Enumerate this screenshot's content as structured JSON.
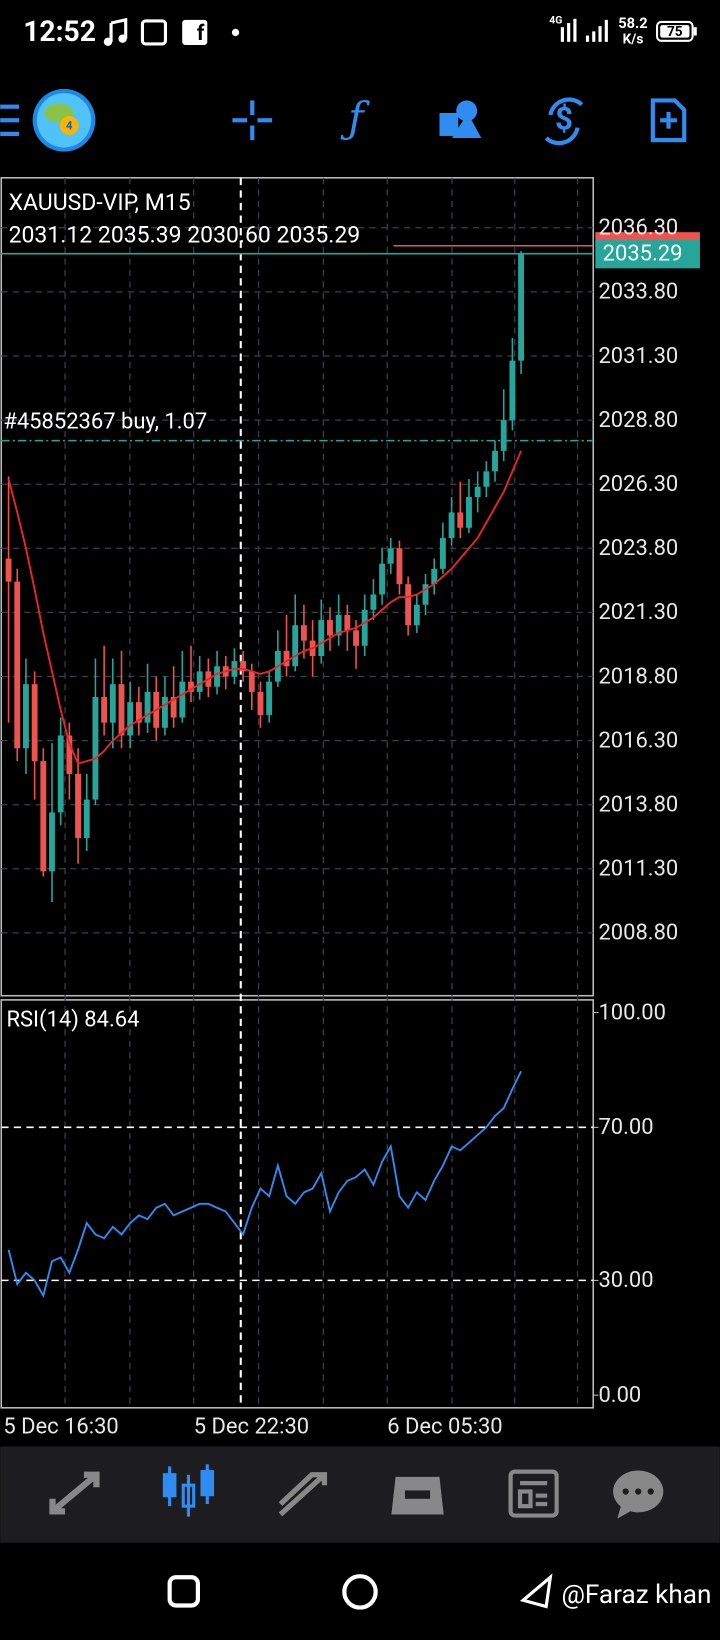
{
  "status_bar": {
    "time": "12:52",
    "network": "4G",
    "speed": "58.2",
    "speed_unit": "K/s",
    "battery": "75"
  },
  "chart_data": {
    "type": "candlestick",
    "title": "XAUUSD-VIP, M15",
    "ohlc": "2031.12 2035.39 2030.60 2035.29",
    "open": [
      2023.4,
      2022.5,
      2016.0,
      2018.5,
      2015.5,
      2011.2,
      2013.5,
      2016.5,
      2015.0,
      2012.5,
      2014.0,
      2018.0,
      2017.0,
      2018.5,
      2016.5,
      2017.8,
      2017.0,
      2018.2,
      2016.8,
      2018.0,
      2017.2,
      2018.6,
      2018.2,
      2019.0,
      2018.4,
      2019.2,
      2018.8,
      2019.4,
      2019.0,
      2018.2,
      2017.3,
      2018.6,
      2019.8,
      2019.2,
      2020.8,
      2020.2,
      2019.6,
      2021.0,
      2020.4,
      2021.2,
      2020.6,
      2020.0,
      2021.4,
      2022.0,
      2023.2,
      2023.8,
      2022.4,
      2020.8,
      2021.6,
      2022.4,
      2023.0,
      2024.2,
      2025.2,
      2024.6,
      2025.8,
      2026.2,
      2026.8,
      2027.6,
      2028.8,
      2031.12
    ],
    "high": [
      2026.6,
      2023.0,
      2019.5,
      2019.0,
      2016.0,
      2016.2,
      2017.2,
      2017.0,
      2016.0,
      2015.0,
      2019.5,
      2020.0,
      2019.5,
      2019.8,
      2018.6,
      2018.4,
      2019.3,
      2018.8,
      2018.8,
      2019.2,
      2019.8,
      2020.0,
      2019.6,
      2019.5,
      2019.8,
      2019.6,
      2019.9,
      2019.8,
      2019.3,
      2018.6,
      2019.0,
      2020.6,
      2021.2,
      2022.0,
      2021.6,
      2021.0,
      2021.8,
      2021.5,
      2022.0,
      2021.6,
      2021.0,
      2022.0,
      2022.6,
      2023.8,
      2024.2,
      2024.1,
      2022.7,
      2022.0,
      2022.8,
      2023.4,
      2024.8,
      2025.8,
      2026.4,
      2026.5,
      2026.8,
      2027.2,
      2028.0,
      2030.0,
      2032.0,
      2035.39
    ],
    "low": [
      2017.0,
      2015.5,
      2015.0,
      2014.0,
      2011.0,
      2010.0,
      2013.0,
      2014.0,
      2011.5,
      2012.0,
      2013.8,
      2016.5,
      2016.0,
      2016.0,
      2016.0,
      2016.5,
      2016.6,
      2016.3,
      2016.5,
      2016.8,
      2017.0,
      2017.8,
      2017.9,
      2018.0,
      2018.1,
      2018.3,
      2018.5,
      2018.6,
      2017.5,
      2016.8,
      2017.0,
      2018.4,
      2018.8,
      2019.0,
      2019.5,
      2018.8,
      2019.3,
      2019.8,
      2020.0,
      2019.8,
      2019.1,
      2019.6,
      2021.0,
      2021.6,
      2022.8,
      2022.0,
      2020.4,
      2020.5,
      2021.2,
      2022.0,
      2022.8,
      2023.9,
      2024.2,
      2024.4,
      2025.2,
      2025.8,
      2026.4,
      2027.2,
      2028.4,
      2030.6
    ],
    "close": [
      2022.5,
      2016.0,
      2018.5,
      2015.5,
      2011.2,
      2013.5,
      2016.5,
      2015.0,
      2012.5,
      2014.0,
      2018.0,
      2017.0,
      2018.5,
      2016.5,
      2017.8,
      2017.0,
      2018.2,
      2016.8,
      2018.0,
      2017.2,
      2018.6,
      2018.2,
      2019.0,
      2018.4,
      2019.2,
      2018.8,
      2019.4,
      2019.0,
      2018.2,
      2017.3,
      2018.6,
      2019.8,
      2019.2,
      2020.8,
      2020.2,
      2019.6,
      2021.0,
      2020.4,
      2021.2,
      2020.6,
      2020.0,
      2021.4,
      2022.0,
      2023.2,
      2023.8,
      2022.4,
      2020.8,
      2021.6,
      2022.4,
      2023.0,
      2024.2,
      2025.2,
      2024.6,
      2025.8,
      2026.2,
      2026.8,
      2027.6,
      2028.8,
      2031.12,
      2035.29
    ],
    "ma": {
      "color": "#e8262a",
      "values": [
        2026.5,
        2025.2,
        2023.8,
        2022.2,
        2020.5,
        2019.0,
        2017.5,
        2016.2,
        2015.4,
        2015.5,
        2015.6,
        2015.9,
        2016.3,
        2016.6,
        2016.9,
        2017.1,
        2017.3,
        2017.5,
        2017.7,
        2017.9,
        2018.1,
        2018.3,
        2018.5,
        2018.7,
        2018.9,
        2019.0,
        2019.1,
        2019.1,
        2019.0,
        2018.9,
        2019.0,
        2019.2,
        2019.4,
        2019.6,
        2019.8,
        2019.9,
        2020.1,
        2020.3,
        2020.5,
        2020.6,
        2020.7,
        2020.9,
        2021.1,
        2021.4,
        2021.7,
        2021.9,
        2021.9,
        2022.0,
        2022.2,
        2022.4,
        2022.7,
        2023.0,
        2023.4,
        2023.8,
        2024.2,
        2024.8,
        2025.4,
        2026.0,
        2026.8,
        2027.6
      ]
    },
    "up_color": "#26a69a",
    "down_color": "#ef5350",
    "bid_price": 2035.29,
    "ask_price": 2035.6,
    "order": {
      "label": "#45852367 buy, 1.07",
      "price": 2028.0
    },
    "ylim": [
      2006.35,
      2038.25
    ],
    "yticks": [
      {
        "value": 2036.3,
        "label": "2036.30"
      },
      {
        "value": 2033.8,
        "label": "2033.80"
      },
      {
        "value": 2031.3,
        "label": "2031.30"
      },
      {
        "value": 2028.8,
        "label": "2028.80"
      },
      {
        "value": 2026.3,
        "label": "2026.30"
      },
      {
        "value": 2023.8,
        "label": "2023.80"
      },
      {
        "value": 2021.3,
        "label": "2021.30"
      },
      {
        "value": 2018.8,
        "label": "2018.80"
      },
      {
        "value": 2016.3,
        "label": "2016.30"
      },
      {
        "value": 2013.8,
        "label": "2013.80"
      },
      {
        "value": 2011.3,
        "label": "2011.30"
      },
      {
        "value": 2008.8,
        "label": "2008.80"
      }
    ],
    "xticks": [
      "5 Dec 16:30",
      "5 Dec 22:30",
      "6 Dec 05:30"
    ],
    "grid": true
  },
  "rsi": {
    "type": "line",
    "title": "RSI(14) 84.64",
    "color": "#2f8cf0",
    "values": [
      38,
      29,
      32,
      30,
      26,
      35,
      36,
      32,
      38,
      45,
      42,
      41,
      44,
      42,
      45,
      47,
      46,
      49,
      50,
      47,
      48,
      49,
      50,
      50,
      49,
      48,
      45,
      42,
      49,
      54,
      52,
      60,
      52,
      50,
      53,
      54,
      58,
      48,
      53,
      56,
      57,
      59,
      55,
      61,
      65,
      52,
      49,
      53,
      51,
      56,
      60,
      65,
      64,
      66,
      68,
      70,
      73,
      75,
      80,
      84.64
    ],
    "ylim": [
      -3.3,
      103.3
    ],
    "yticks": [
      {
        "value": 100,
        "label": "100.00"
      },
      {
        "value": 70,
        "label": "70.00"
      },
      {
        "value": 30,
        "label": "30.00"
      },
      {
        "value": 0,
        "label": "0.00"
      }
    ],
    "levels": [
      70,
      30
    ]
  },
  "watermark": "@Faraz khan"
}
